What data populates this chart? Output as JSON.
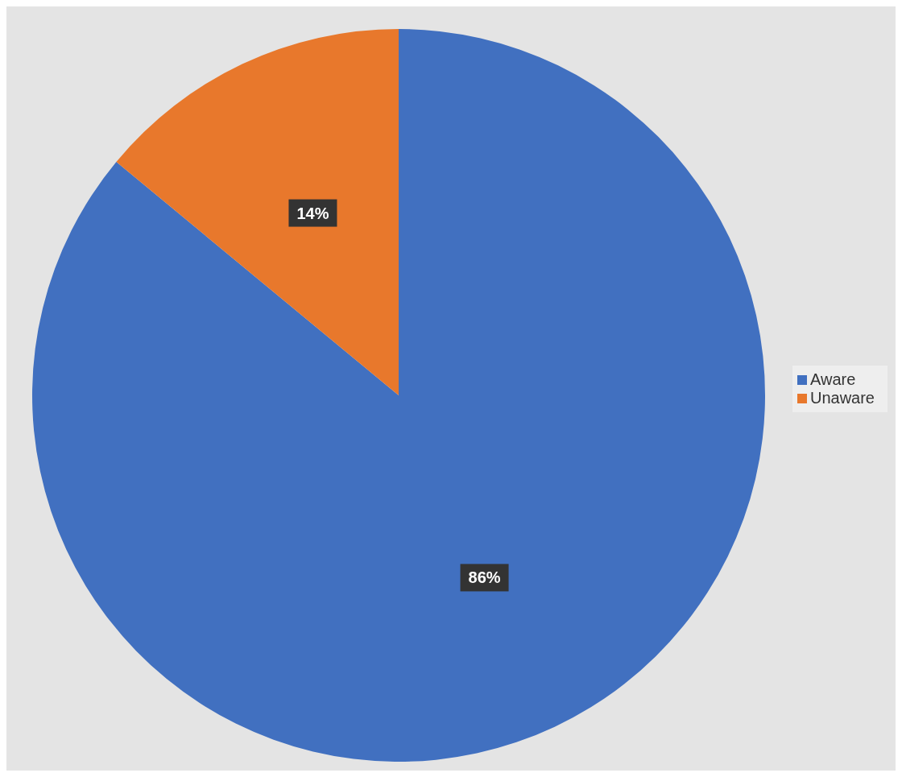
{
  "chart_data": {
    "type": "pie",
    "categories": [
      "Aware",
      "Unaware"
    ],
    "values": [
      86,
      14
    ],
    "colors": [
      "#4170c0",
      "#e8782c"
    ],
    "value_labels": [
      "86%",
      "14%"
    ],
    "legend": "right"
  }
}
